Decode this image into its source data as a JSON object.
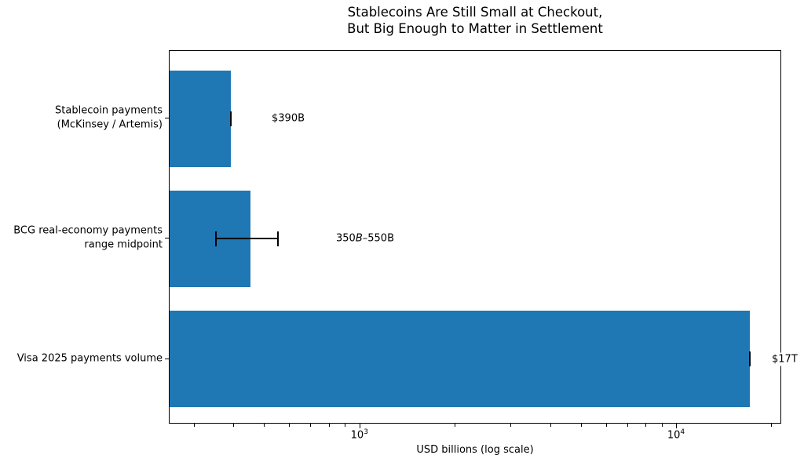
{
  "figure": {
    "title_line1": "Stablecoins Are Still Small at Checkout,",
    "title_line2": "But Big Enough to Matter in Settlement"
  },
  "chart_data": {
    "type": "bar",
    "orientation": "horizontal",
    "title": "Stablecoins Are Still Small at Checkout,\nBut Big Enough to Matter in Settlement",
    "xlabel": "USD billions (log scale)",
    "ylabel": "",
    "xscale": "log",
    "xlim": [
      250,
      21500
    ],
    "grid": false,
    "legend": null,
    "bar_color": "#1f77b4",
    "error_color": "#000000",
    "categories": [
      {
        "lines": [
          "Stablecoin payments",
          "(McKinsey / Artemis)"
        ]
      },
      {
        "lines": [
          "BCG real-economy payments",
          "range midpoint"
        ]
      },
      {
        "lines": [
          "Visa 2025 payments volume"
        ]
      }
    ],
    "values": [
      390,
      450,
      17000
    ],
    "error_ranges": [
      [
        390,
        390
      ],
      [
        350,
        550
      ],
      [
        17000,
        17000
      ]
    ],
    "annotations": [
      {
        "text": "$390B"
      },
      {
        "text_pre": "350",
        "text_italic": "B",
        "text_post": "–550B"
      },
      {
        "text": "$17T"
      }
    ],
    "x_major_ticks": [
      {
        "value": 1000,
        "base": "10",
        "exp": "3"
      },
      {
        "value": 10000,
        "base": "10",
        "exp": "4"
      }
    ],
    "x_minor_ticks": [
      300,
      400,
      500,
      600,
      700,
      800,
      900,
      2000,
      3000,
      4000,
      5000,
      6000,
      7000,
      8000,
      9000,
      20000
    ]
  }
}
